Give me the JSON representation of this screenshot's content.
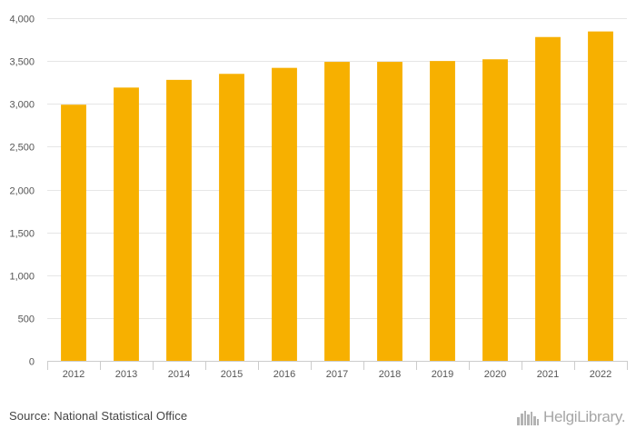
{
  "chart_data": {
    "type": "bar",
    "categories": [
      "2012",
      "2013",
      "2014",
      "2015",
      "2016",
      "2017",
      "2018",
      "2019",
      "2020",
      "2021",
      "2022"
    ],
    "values": [
      2990,
      3190,
      3280,
      3350,
      3420,
      3490,
      3490,
      3500,
      3520,
      3780,
      3845
    ],
    "ylim": [
      0,
      4000
    ],
    "yticks": [
      0,
      500,
      1000,
      1500,
      2000,
      2500,
      3000,
      3500,
      4000
    ],
    "ytick_labels": [
      "0",
      "500",
      "1,000",
      "1,500",
      "2,000",
      "2,500",
      "3,000",
      "3,500",
      "4,000"
    ],
    "grid": true,
    "colors": {
      "bar": "#f7b000",
      "grid": "#e6e6e6",
      "axis": "#cccccc"
    }
  },
  "footer": {
    "source": "Source: National Statistical Office",
    "brand": "HelgiLibrary."
  },
  "icons": {
    "brand_logo": "skyline-icon"
  }
}
